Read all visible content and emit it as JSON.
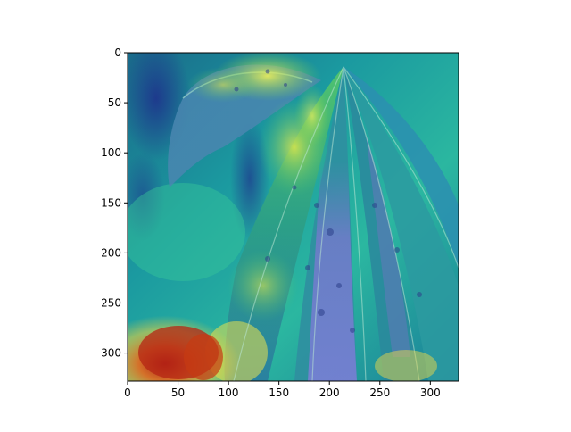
{
  "figure": {
    "image_description": "Cassava leaf photo with a jet-colormap heatmap overlay (Grad-CAM style)",
    "colors": {
      "background": "#ffffff",
      "axis": "#000000",
      "heat_high": "#b01010",
      "heat_mid": "#f2d23a",
      "heat_low": "#1e2f8c",
      "overlay_teal": "#1aa7a0",
      "leaf_green": "#39b26a"
    },
    "x_ticks": [
      "0",
      "50",
      "100",
      "150",
      "200",
      "250",
      "300"
    ],
    "y_ticks": [
      "0",
      "50",
      "100",
      "150",
      "200",
      "250",
      "300"
    ]
  },
  "chart_data": {
    "type": "heatmap",
    "title": "",
    "xlabel": "",
    "ylabel": "",
    "xlim": [
      0,
      328
    ],
    "ylim": [
      328,
      0
    ],
    "grid": false,
    "x_ticks": [
      0,
      50,
      100,
      150,
      200,
      250,
      300
    ],
    "y_ticks": [
      0,
      50,
      100,
      150,
      200,
      250,
      300
    ]
  }
}
